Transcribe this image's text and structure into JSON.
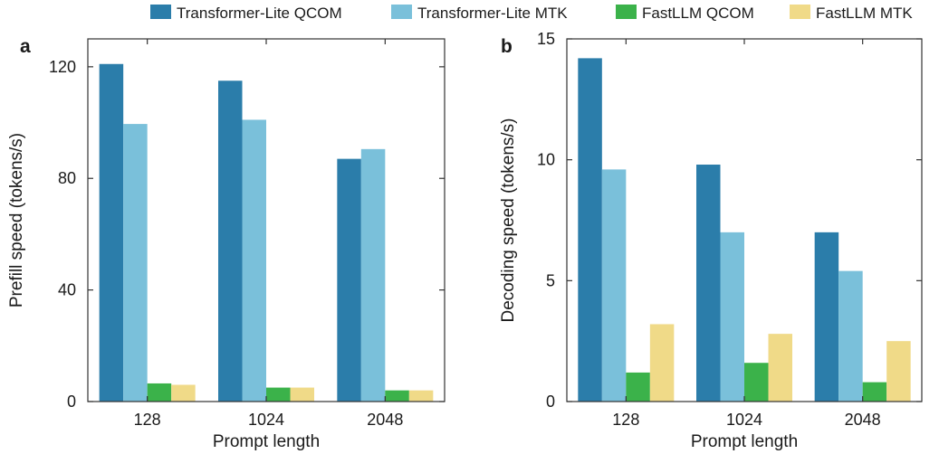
{
  "colors": {
    "tl_qcom": "#2b7daa",
    "tl_mtk": "#7ac0da",
    "fl_qcom": "#3bb24a",
    "fl_mtk": "#f0da88",
    "axis": "#333333"
  },
  "legend": {
    "items": [
      {
        "label": "Transformer-Lite QCOM",
        "color": "#2b7daa"
      },
      {
        "label": "Transformer-Lite MTK",
        "color": "#7ac0da"
      },
      {
        "label": "FastLLM QCOM",
        "color": "#3bb24a"
      },
      {
        "label": "FastLLM MTK",
        "color": "#f0da88"
      }
    ]
  },
  "chart_data": [
    {
      "type": "bar",
      "panel_label": "a",
      "xlabel": "Prompt length",
      "ylabel": "Prefill speed (tokens/s)",
      "categories": [
        "128",
        "1024",
        "2048"
      ],
      "ylim": [
        0,
        130
      ],
      "yticks": [
        0,
        40,
        80,
        120
      ],
      "grid": false,
      "series": [
        {
          "name": "Transformer-Lite QCOM",
          "values": [
            121,
            115,
            87
          ]
        },
        {
          "name": "Transformer-Lite MTK",
          "values": [
            99.5,
            101,
            90.5
          ]
        },
        {
          "name": "FastLLM QCOM",
          "values": [
            6.5,
            5,
            4
          ]
        },
        {
          "name": "FastLLM MTK",
          "values": [
            6,
            5,
            4
          ]
        }
      ]
    },
    {
      "type": "bar",
      "panel_label": "b",
      "xlabel": "Prompt length",
      "ylabel": "Decoding speed (tokens/s)",
      "categories": [
        "128",
        "1024",
        "2048"
      ],
      "ylim": [
        0,
        15
      ],
      "yticks": [
        0,
        5,
        10,
        15
      ],
      "grid": false,
      "series": [
        {
          "name": "Transformer-Lite QCOM",
          "values": [
            14.2,
            9.8,
            7
          ]
        },
        {
          "name": "Transformer-Lite MTK",
          "values": [
            9.6,
            7,
            5.4
          ]
        },
        {
          "name": "FastLLM QCOM",
          "values": [
            1.2,
            1.6,
            0.8
          ]
        },
        {
          "name": "FastLLM MTK",
          "values": [
            3.2,
            2.8,
            2.5
          ]
        }
      ]
    }
  ]
}
